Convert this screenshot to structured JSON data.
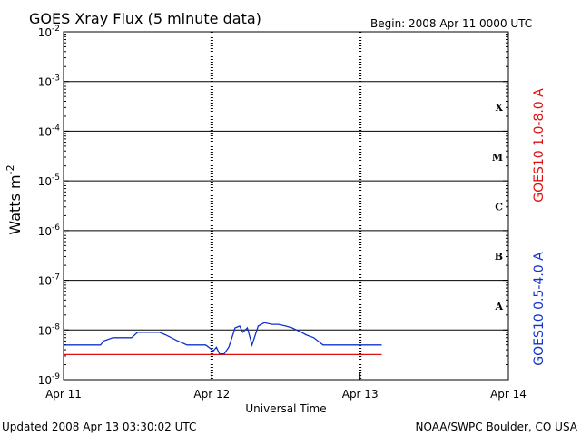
{
  "header": {
    "title": "GOES Xray Flux (5 minute data)",
    "begin": "Begin:  2008 Apr 11 0000 UTC"
  },
  "footer": {
    "updated": "Updated 2008 Apr 13 03:30:02 UTC",
    "source": "NOAA/SWPC Boulder, CO USA"
  },
  "colors": {
    "long_channel": "#dd1111",
    "short_channel": "#1133cc",
    "axes": "#000000"
  },
  "chart_data": {
    "type": "line",
    "title": "GOES Xray Flux (5 minute data)",
    "xlabel": "Universal Time",
    "ylabel_base": "Watts m",
    "ylabel_exp": "-2",
    "yscale": "log",
    "ylim": [
      1e-09,
      0.01
    ],
    "xlim": [
      "2008-04-11 00:00",
      "2008-04-14 00:00"
    ],
    "x_ticks": [
      "Apr 11",
      "Apr 12",
      "Apr 13",
      "Apr 14"
    ],
    "y_ticks": [
      {
        "base": "10",
        "exp": "-9"
      },
      {
        "base": "10",
        "exp": "-8"
      },
      {
        "base": "10",
        "exp": "-7"
      },
      {
        "base": "10",
        "exp": "-6"
      },
      {
        "base": "10",
        "exp": "-5"
      },
      {
        "base": "10",
        "exp": "-4"
      },
      {
        "base": "10",
        "exp": "-3"
      },
      {
        "base": "10",
        "exp": "-2"
      }
    ],
    "flare_classes": [
      "A",
      "B",
      "C",
      "M",
      "X"
    ],
    "grid": true,
    "series": [
      {
        "name": "GOES10 1.0-8.0 A",
        "color": "#dd1111",
        "x": [
          "2008-04-11 00:00",
          "2008-04-13 03:30"
        ],
        "y": [
          3.2e-09,
          3.2e-09
        ]
      },
      {
        "name": "GOES10 0.5-4.0 A",
        "color": "#1133cc",
        "x": [
          "2008-04-11 00:00",
          "2008-04-11 06:00",
          "2008-04-11 06:30",
          "2008-04-11 08:00",
          "2008-04-11 09:00",
          "2008-04-11 11:00",
          "2008-04-11 12:00",
          "2008-04-11 15:30",
          "2008-04-11 16:30",
          "2008-04-11 18:30",
          "2008-04-11 20:00",
          "2008-04-11 23:00",
          "2008-04-11 23:30",
          "2008-04-12 00:15",
          "2008-04-12 00:45",
          "2008-04-12 01:15",
          "2008-04-12 02:00",
          "2008-04-12 02:45",
          "2008-04-12 03:15",
          "2008-04-12 03:45",
          "2008-04-12 04:30",
          "2008-04-12 05:00",
          "2008-04-12 05:45",
          "2008-04-12 06:30",
          "2008-04-12 07:30",
          "2008-04-12 08:30",
          "2008-04-12 09:45",
          "2008-04-12 10:45",
          "2008-04-12 12:00",
          "2008-04-12 13:00",
          "2008-04-12 14:30",
          "2008-04-12 15:15",
          "2008-04-12 16:30",
          "2008-04-12 18:00",
          "2008-04-12 20:00",
          "2008-04-13 03:30"
        ],
        "y": [
          5e-09,
          5e-09,
          6e-09,
          7e-09,
          7e-09,
          7e-09,
          9e-09,
          9e-09,
          8e-09,
          6e-09,
          5e-09,
          5e-09,
          4.5e-09,
          3.8e-09,
          4.5e-09,
          3.3e-09,
          3.3e-09,
          4.5e-09,
          7e-09,
          1.1e-08,
          1.2e-08,
          9e-09,
          1.1e-08,
          5e-09,
          1.2e-08,
          1.4e-08,
          1.3e-08,
          1.3e-08,
          1.2e-08,
          1.1e-08,
          9e-09,
          8e-09,
          7e-09,
          5e-09,
          5e-09,
          5e-09
        ]
      }
    ]
  }
}
